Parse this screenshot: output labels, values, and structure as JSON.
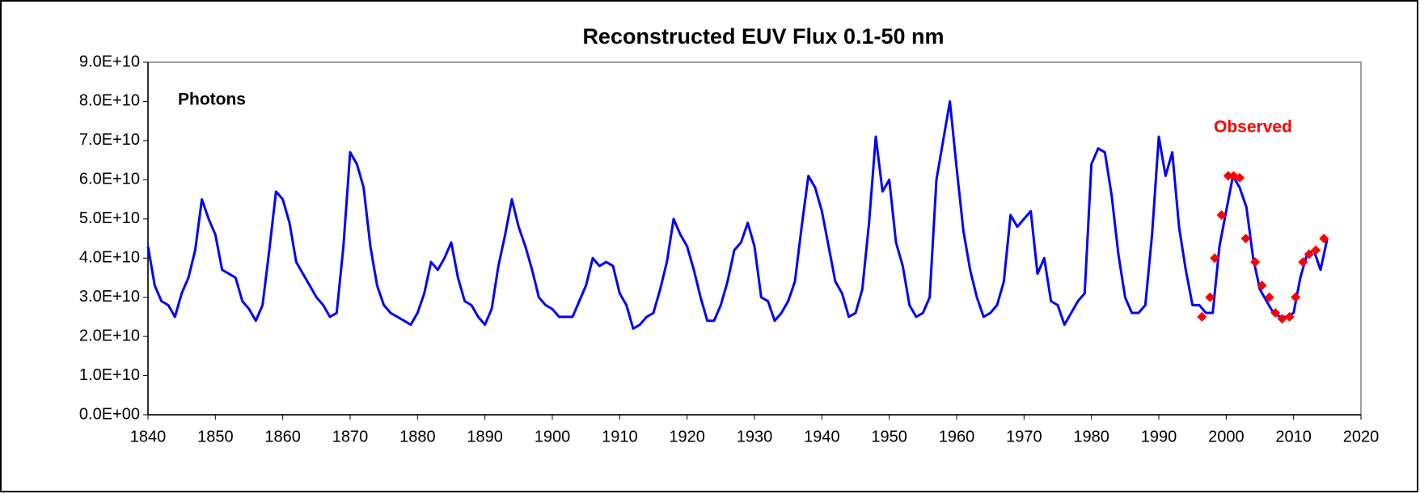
{
  "chart_data": {
    "type": "line",
    "title": "Reconstructed EUV Flux 0.1-50 nm",
    "ylabel": "Photons",
    "x": [
      1840,
      1841,
      1842,
      1843,
      1844,
      1845,
      1846,
      1847,
      1848,
      1849,
      1850,
      1851,
      1852,
      1853,
      1854,
      1855,
      1856,
      1857,
      1858,
      1859,
      1860,
      1861,
      1862,
      1863,
      1864,
      1865,
      1866,
      1867,
      1868,
      1869,
      1870,
      1871,
      1872,
      1873,
      1874,
      1875,
      1876,
      1877,
      1878,
      1879,
      1880,
      1881,
      1882,
      1883,
      1884,
      1885,
      1886,
      1887,
      1888,
      1889,
      1890,
      1891,
      1892,
      1893,
      1894,
      1895,
      1896,
      1897,
      1898,
      1899,
      1900,
      1901,
      1902,
      1903,
      1904,
      1905,
      1906,
      1907,
      1908,
      1909,
      1910,
      1911,
      1912,
      1913,
      1914,
      1915,
      1916,
      1917,
      1918,
      1919,
      1920,
      1921,
      1922,
      1923,
      1924,
      1925,
      1926,
      1927,
      1928,
      1929,
      1930,
      1931,
      1932,
      1933,
      1934,
      1935,
      1936,
      1937,
      1938,
      1939,
      1940,
      1941,
      1942,
      1943,
      1944,
      1945,
      1946,
      1947,
      1948,
      1949,
      1950,
      1951,
      1952,
      1953,
      1954,
      1955,
      1956,
      1957,
      1958,
      1959,
      1960,
      1961,
      1962,
      1963,
      1964,
      1965,
      1966,
      1967,
      1968,
      1969,
      1970,
      1971,
      1972,
      1973,
      1974,
      1975,
      1976,
      1977,
      1978,
      1979,
      1980,
      1981,
      1982,
      1983,
      1984,
      1985,
      1986,
      1987,
      1988,
      1989,
      1990,
      1991,
      1992,
      1993,
      1994,
      1995,
      1996,
      1997,
      1998,
      1999,
      2000,
      2001,
      2002,
      2003,
      2004,
      2005,
      2006,
      2007,
      2008,
      2009,
      2010,
      2011,
      2012,
      2013,
      2014,
      2015
    ],
    "series": [
      {
        "color": "#0000ff",
        "values": [
          43000000000.0,
          33000000000.0,
          29000000000.0,
          28000000000.0,
          25000000000.0,
          31000000000.0,
          35000000000.0,
          42000000000.0,
          55000000000.0,
          50000000000.0,
          46000000000.0,
          37000000000.0,
          36000000000.0,
          35000000000.0,
          29000000000.0,
          27000000000.0,
          24000000000.0,
          28000000000.0,
          42000000000.0,
          57000000000.0,
          55000000000.0,
          49000000000.0,
          39000000000.0,
          36000000000.0,
          33000000000.0,
          30000000000.0,
          28000000000.0,
          25000000000.0,
          26000000000.0,
          43000000000.0,
          67000000000.0,
          64000000000.0,
          58000000000.0,
          43000000000.0,
          33000000000.0,
          28000000000.0,
          26000000000.0,
          25000000000.0,
          24000000000.0,
          23000000000.0,
          26000000000.0,
          31000000000.0,
          39000000000.0,
          37000000000.0,
          40000000000.0,
          44000000000.0,
          35000000000.0,
          29000000000.0,
          28000000000.0,
          25000000000.0,
          23000000000.0,
          27000000000.0,
          38000000000.0,
          46000000000.0,
          55000000000.0,
          48000000000.0,
          43000000000.0,
          37000000000.0,
          30000000000.0,
          28000000000.0,
          27000000000.0,
          25000000000.0,
          25000000000.0,
          25000000000.0,
          29000000000.0,
          33000000000.0,
          40000000000.0,
          38000000000.0,
          39000000000.0,
          38000000000.0,
          31000000000.0,
          28000000000.0,
          22000000000.0,
          23000000000.0,
          25000000000.0,
          26000000000.0,
          32000000000.0,
          39000000000.0,
          50000000000.0,
          46000000000.0,
          43000000000.0,
          37000000000.0,
          30000000000.0,
          24000000000.0,
          24000000000.0,
          28000000000.0,
          34000000000.0,
          42000000000.0,
          44000000000.0,
          49000000000.0,
          43000000000.0,
          30000000000.0,
          29000000000.0,
          24000000000.0,
          26000000000.0,
          29000000000.0,
          34000000000.0,
          48000000000.0,
          61000000000.0,
          58000000000.0,
          52000000000.0,
          43000000000.0,
          34000000000.0,
          31000000000.0,
          25000000000.0,
          26000000000.0,
          32000000000.0,
          49000000000.0,
          71000000000.0,
          57000000000.0,
          60000000000.0,
          44000000000.0,
          38000000000.0,
          28000000000.0,
          25000000000.0,
          26000000000.0,
          30000000000.0,
          60000000000.0,
          70000000000.0,
          80000000000.0,
          63000000000.0,
          47000000000.0,
          37000000000.0,
          30000000000.0,
          25000000000.0,
          26000000000.0,
          28000000000.0,
          34000000000.0,
          51000000000.0,
          48000000000.0,
          50000000000.0,
          52000000000.0,
          36000000000.0,
          40000000000.0,
          29000000000.0,
          28000000000.0,
          23000000000.0,
          26000000000.0,
          29000000000.0,
          31000000000.0,
          64000000000.0,
          68000000000.0,
          67000000000.0,
          56000000000.0,
          41000000000.0,
          30000000000.0,
          26000000000.0,
          26000000000.0,
          28000000000.0,
          46000000000.0,
          71000000000.0,
          61000000000.0,
          67000000000.0,
          48000000000.0,
          37000000000.0,
          28000000000.0,
          28000000000.0,
          26000000000.0,
          26000000000.0,
          43000000000.0,
          52000000000.0,
          61000000000.0,
          58000000000.0,
          53000000000.0,
          40000000000.0,
          32000000000.0,
          29000000000.0,
          26000000000.0,
          25000000000.0,
          25000000000.0,
          26000000000.0,
          35000000000.0,
          41000000000.0,
          42000000000.0,
          37000000000.0,
          45000000000.0
        ]
      }
    ],
    "observed": {
      "name": "Observed",
      "color": "#ff0000",
      "x": [
        1996.4,
        1997.6,
        1998.3,
        1999.3,
        2000.3,
        2001.1,
        2002.0,
        2002.9,
        2004.3,
        2005.3,
        2006.4,
        2007.3,
        2008.3,
        2009.4,
        2010.3,
        2011.4,
        2012.3,
        2013.3,
        2014.5
      ],
      "values": [
        25000000000.0,
        30000000000.0,
        40000000000.0,
        51000000000.0,
        61000000000.0,
        61000000000.0,
        60500000000.0,
        45000000000.0,
        39000000000.0,
        33000000000.0,
        30000000000.0,
        26000000000.0,
        24500000000.0,
        25000000000.0,
        30000000000.0,
        39000000000.0,
        41000000000.0,
        42000000000.0,
        45000000000.0
      ]
    },
    "xlim": [
      1840,
      2020
    ],
    "xticks": [
      1840,
      1850,
      1860,
      1870,
      1880,
      1890,
      1900,
      1910,
      1920,
      1930,
      1940,
      1950,
      1960,
      1970,
      1980,
      1990,
      2000,
      2010,
      2020
    ],
    "ylim": [
      0,
      90000000000.0
    ],
    "yticks": [
      {
        "value": 0,
        "label": "0.0E+00"
      },
      {
        "value": 10000000000.0,
        "label": "1.0E+10"
      },
      {
        "value": 20000000000.0,
        "label": "2.0E+10"
      },
      {
        "value": 30000000000.0,
        "label": "3.0E+10"
      },
      {
        "value": 40000000000.0,
        "label": "4.0E+10"
      },
      {
        "value": 50000000000.0,
        "label": "5.0E+10"
      },
      {
        "value": 60000000000.0,
        "label": "6.0E+10"
      },
      {
        "value": 70000000000.0,
        "label": "7.0E+10"
      },
      {
        "value": 80000000000.0,
        "label": "8.0E+10"
      },
      {
        "value": 90000000000.0,
        "label": "9.0E+10"
      }
    ]
  }
}
